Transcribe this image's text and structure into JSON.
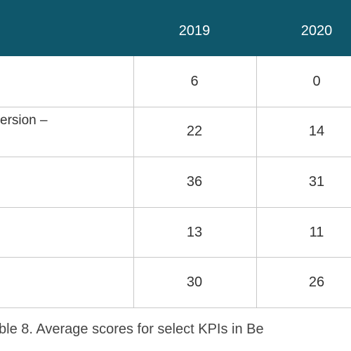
{
  "table": {
    "columns": [
      "2019",
      "2020"
    ],
    "rows": [
      {
        "values": [
          6,
          0
        ]
      },
      {
        "label": "ersion –",
        "values": [
          22,
          14
        ]
      },
      {
        "values": [
          36,
          31
        ]
      },
      {
        "values": [
          13,
          11
        ]
      },
      {
        "values": [
          30,
          26
        ]
      }
    ]
  },
  "caption": "ble 8. Average scores for select KPIs in Be"
}
